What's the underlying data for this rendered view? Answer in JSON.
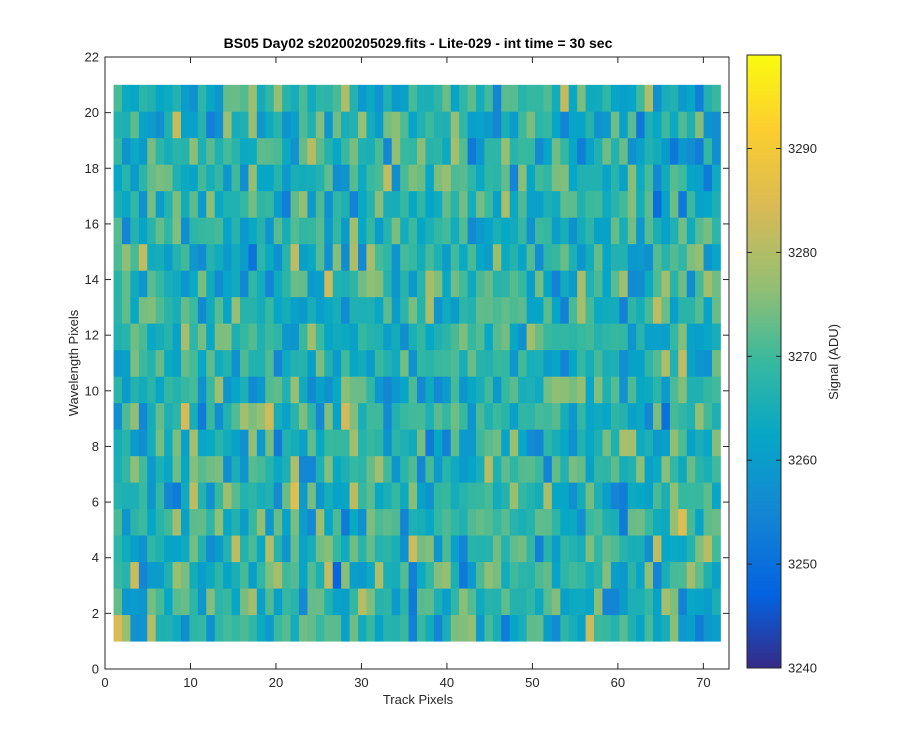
{
  "chart_data": {
    "type": "heatmap",
    "title": "BS05 Day02  s20200205029.fits - Lite-029 - int time = 30 sec",
    "xlabel": "Track Pixels",
    "ylabel": "Wavelength Pixels",
    "xlim": [
      0,
      73
    ],
    "ylim": [
      0,
      22
    ],
    "x_ticks": [
      0,
      10,
      20,
      30,
      40,
      50,
      60,
      70
    ],
    "y_ticks": [
      0,
      2,
      4,
      6,
      8,
      10,
      12,
      14,
      16,
      18,
      20,
      22
    ],
    "x_tick_labels": [
      "0",
      "10",
      "20",
      "30",
      "40",
      "50",
      "60",
      "70"
    ],
    "y_tick_labels": [
      "0",
      "2",
      "4",
      "6",
      "8",
      "10",
      "12",
      "14",
      "16",
      "18",
      "20",
      "22"
    ],
    "grid_x_range": [
      1,
      72
    ],
    "grid_y_range": [
      1,
      21
    ],
    "n_cols": 72,
    "n_rows": 21,
    "colorbar": {
      "label": "Signal (ADU)",
      "range": [
        3240,
        3299
      ],
      "ticks": [
        3240,
        3250,
        3260,
        3270,
        3280,
        3290
      ],
      "tick_labels": [
        "3240",
        "3250",
        "3260",
        "3270",
        "3280",
        "3290"
      ],
      "colormap": "parula"
    },
    "grid": false
  }
}
